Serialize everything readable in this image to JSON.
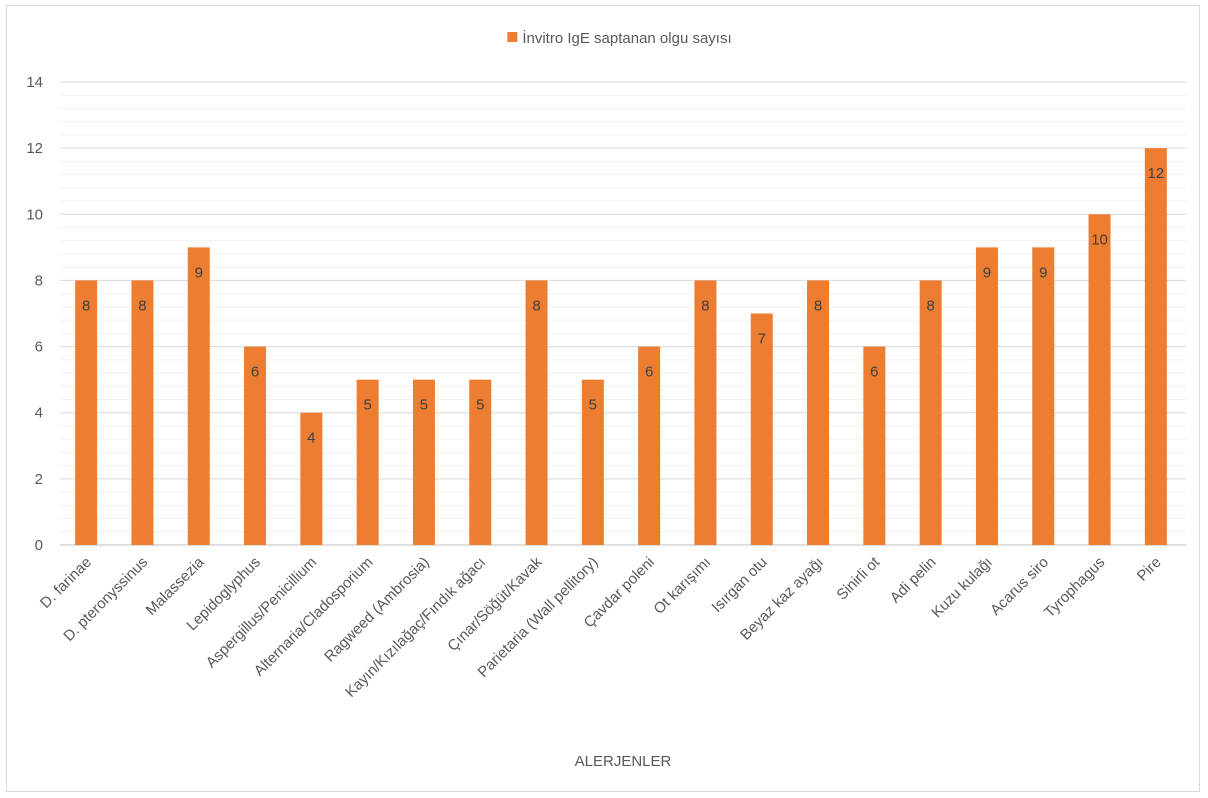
{
  "chart_data": {
    "type": "bar",
    "title": "",
    "xlabel": "ALERJENLER",
    "ylabel": "",
    "ylim": [
      0,
      14
    ],
    "yticks": [
      0,
      2,
      4,
      6,
      8,
      10,
      12,
      14
    ],
    "grid": true,
    "legend_position": "top",
    "categories": [
      "D. farinae",
      "D. pteronyssinus",
      "Malassezia",
      "Lepidoglyphus",
      "Aspergillus/Penicillium",
      "Alternaria/Cladosporium",
      "Ragweed (Ambrosia)",
      "Kayın/Kızılağaç/Fındık ağacı",
      "Çınar/Söğüt/Kavak",
      "Parietaria (Wall pellitory)",
      "Çavdar poleni",
      "Ot karışımı",
      "Isırgan otu",
      "Beyaz kaz ayağı",
      "Sinirli ot",
      "Adi pelin",
      "Kuzu  kulağı",
      "Acarus siro",
      "Tyrophagus",
      "Pire"
    ],
    "series": [
      {
        "name": "İnvitro IgE saptanan olgu sayısı",
        "color": "#ed7d31",
        "values": [
          8,
          8,
          9,
          6,
          4,
          5,
          5,
          5,
          8,
          5,
          6,
          8,
          7,
          8,
          6,
          8,
          9,
          9,
          10,
          12
        ]
      }
    ]
  }
}
